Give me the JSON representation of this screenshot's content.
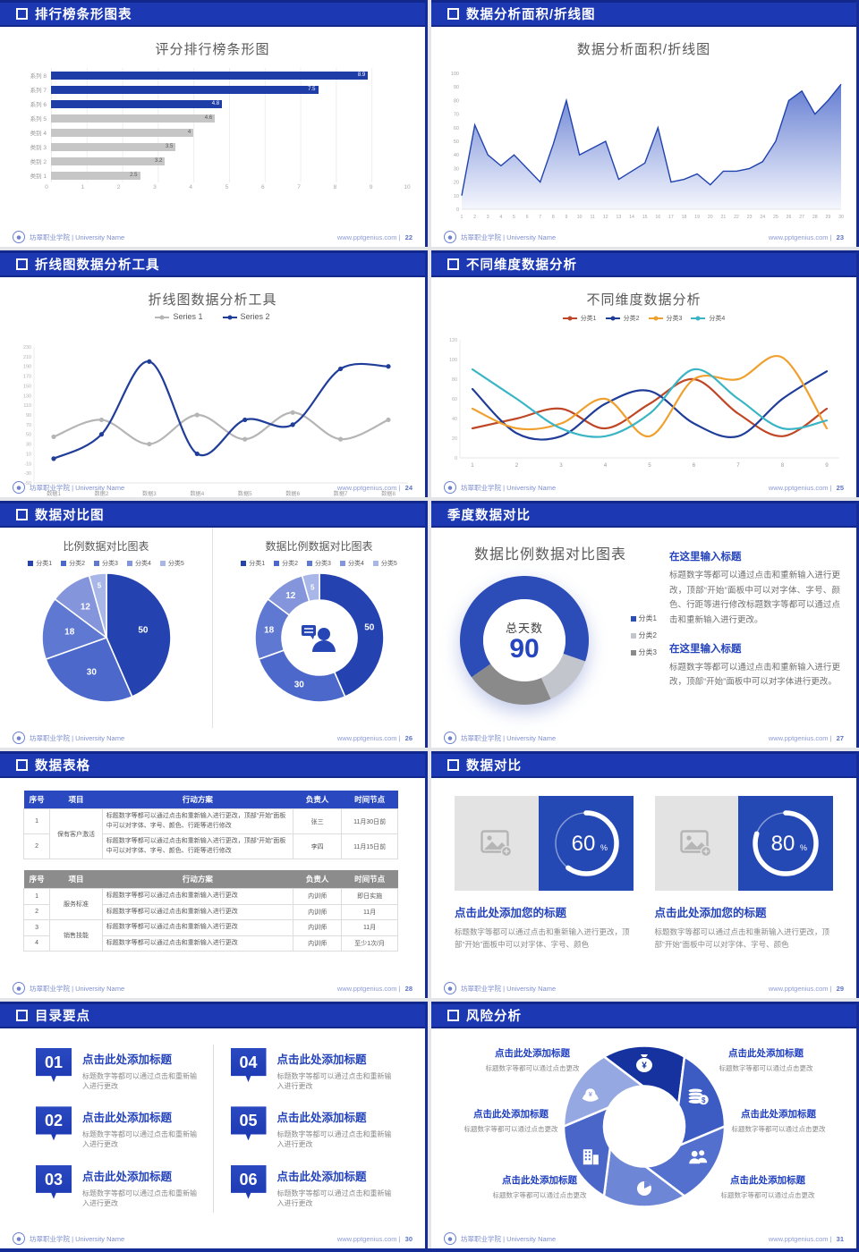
{
  "page_background": "#e3e5e9",
  "accent_color": "#1c38b2",
  "footer": {
    "university": "坊翠职业学院 | University Name",
    "website": "www.pptgenius.com"
  },
  "slides": [
    {
      "header": "排行榜条形图表",
      "page": "22",
      "title": "评分排行榜条形图",
      "chart": 0
    },
    {
      "header": "数据分析面积/折线图",
      "page": "23",
      "title": "数据分析面积/折线图",
      "chart": 1
    },
    {
      "header": "折线图数据分析工具",
      "page": "24",
      "title": "折线图数据分析工具",
      "chart": 2
    },
    {
      "header": "不同维度数据分析",
      "page": "25",
      "title": "不同维度数据分析",
      "chart": 3
    },
    {
      "header": "数据对比图",
      "page": "26",
      "left_title": "比例数据对比图表",
      "right_title": "数据比例数据对比图表",
      "charts": [
        4,
        5
      ]
    },
    {
      "header": "季度数据对比",
      "page": "27",
      "title": "数据比例数据对比图表",
      "chart": 6,
      "center_label": "总天数",
      "center_value": "90",
      "sections": [
        {
          "heading": "在这里输入标题",
          "body": "标题数字等都可以通过点击和重新输入进行更改，顶部“开始”面板中可以对字体、字号、颜色、行距等进行修改标题数字等都可以通过点击和重新输入进行更改。"
        },
        {
          "heading": "在这里输入标题",
          "body": "标题数字等都可以通过点击和重新输入进行更改，顶部“开始”面板中可以对字体进行更改。"
        }
      ]
    },
    {
      "header": "数据表格",
      "page": "28",
      "tables": [
        {
          "style": "blue",
          "columns": [
            "序号",
            "项目",
            "行动方案",
            "负责人",
            "时间节点"
          ],
          "groups": [
            {
              "item": "保有客户激活",
              "rows": [
                {
                  "no": "1",
                  "plan": "标题数字等都可以通过点击和重新输入进行更改，顶部“开始”面板中可以对字体、字号、颜色、行距等进行修改",
                  "owner": "张三",
                  "time": "11月30日前"
                },
                {
                  "no": "2",
                  "plan": "标题数字等都可以通过点击和重新输入进行更改，顶部“开始”面板中可以对字体、字号、颜色、行距等进行修改",
                  "owner": "李四",
                  "time": "11月15日前"
                }
              ]
            }
          ]
        },
        {
          "style": "gray",
          "columns": [
            "序号",
            "项目",
            "行动方案",
            "负责人",
            "时间节点"
          ],
          "groups": [
            {
              "item": "服务标准",
              "rows": [
                {
                  "no": "1",
                  "plan": "标题数字等都可以通过点击和重新输入进行更改",
                  "owner": "内训师",
                  "time": "即日实施"
                },
                {
                  "no": "2",
                  "plan": "标题数字等都可以通过点击和重新输入进行更改",
                  "owner": "内训师",
                  "time": "11月"
                }
              ]
            },
            {
              "item": "销售技能",
              "rows": [
                {
                  "no": "3",
                  "plan": "标题数字等都可以通过点击和重新输入进行更改",
                  "owner": "内训师",
                  "time": "11月"
                },
                {
                  "no": "4",
                  "plan": "标题数字等都可以通过点击和重新输入进行更改",
                  "owner": "内训师",
                  "time": "至少1次/月"
                }
              ]
            }
          ]
        }
      ]
    },
    {
      "header": "数据对比",
      "page": "29",
      "cards": [
        {
          "chart": 7,
          "title": "点击此处添加您的标题",
          "body": "标题数字等都可以通过点击和重新输入进行更改，顶部“开始”面板中可以对字体、字号、颜色"
        },
        {
          "chart": 8,
          "title": "点击此处添加您的标题",
          "body": "标题数字等都可以通过点击和重新输入进行更改，顶部“开始”面板中可以对字体、字号、颜色"
        }
      ]
    },
    {
      "header": "目录要点",
      "page": "30",
      "items": [
        {
          "num": "01",
          "title": "点击此处添加标题",
          "body": "标题数字等都可以通过点击和重新输入进行更改"
        },
        {
          "num": "02",
          "title": "点击此处添加标题",
          "body": "标题数字等都可以通过点击和重新输入进行更改"
        },
        {
          "num": "03",
          "title": "点击此处添加标题",
          "body": "标题数字等都可以通过点击和重新输入进行更改"
        },
        {
          "num": "04",
          "title": "点击此处添加标题",
          "body": "标题数字等都可以通过点击和重新输入进行更改"
        },
        {
          "num": "05",
          "title": "点击此处添加标题",
          "body": "标题数字等都可以通过点击和重新输入进行更改"
        },
        {
          "num": "06",
          "title": "点击此处添加标题",
          "body": "标题数字等都可以通过点击和重新输入进行更改"
        }
      ]
    },
    {
      "header": "风险分析",
      "page": "31",
      "items": [
        {
          "title": "点击此处添加标题",
          "body": "标题数字等都可以通过点击更改",
          "icon": "money-bag-icon"
        },
        {
          "title": "点击此处添加标题",
          "body": "标题数字等都可以通过点击更改",
          "icon": "coins-icon"
        },
        {
          "title": "点击此处添加标题",
          "body": "标题数字等都可以通过点击更改",
          "icon": "people-icon"
        },
        {
          "title": "点击此处添加标题",
          "body": "标题数字等都可以通过点击更改",
          "icon": "pie-icon"
        },
        {
          "title": "点击此处添加标题",
          "body": "标题数字等都可以通过点击更改",
          "icon": "building-icon"
        },
        {
          "title": "点击此处添加标题",
          "body": "标题数字等都可以通过点击更改",
          "icon": "hat-icon"
        }
      ]
    }
  ],
  "chart_data": [
    {
      "type": "bar",
      "orientation": "horizontal",
      "title": "评分排行榜条形图",
      "categories": [
        "系列 8",
        "系列 7",
        "系列 6",
        "系列 5",
        "类别 4",
        "类别 3",
        "类别 2",
        "类别 1"
      ],
      "values": [
        8.9,
        7.5,
        4.8,
        4.6,
        4,
        3.5,
        3.2,
        2.5
      ],
      "bar_colors": [
        "#1f3da6",
        "#1f3da6",
        "#1f3da6",
        "#c6c6c6",
        "#c6c6c6",
        "#c6c6c6",
        "#c6c6c6",
        "#c6c6c6"
      ],
      "xlim": [
        0,
        10
      ],
      "xticks": [
        0,
        1,
        2,
        3,
        4,
        5,
        6,
        7,
        8,
        9,
        10
      ],
      "grid": true
    },
    {
      "type": "area",
      "title": "数据分析面积/折线图",
      "x": [
        1,
        2,
        3,
        4,
        5,
        6,
        7,
        8,
        9,
        10,
        11,
        12,
        13,
        14,
        15,
        16,
        17,
        18,
        19,
        20,
        21,
        22,
        23,
        24,
        25,
        26,
        27,
        28,
        29,
        30
      ],
      "values": [
        10,
        62,
        40,
        32,
        40,
        30,
        20,
        48,
        80,
        40,
        45,
        50,
        22,
        28,
        34,
        60,
        20,
        22,
        26,
        18,
        28,
        28,
        30,
        35,
        50,
        80,
        87,
        70,
        80,
        92
      ],
      "ylim": [
        0,
        100
      ],
      "ytick_step": 10,
      "line_color": "#2143ae",
      "fill_top": "#5b76cf",
      "fill_bottom": "#f4f6fd"
    },
    {
      "type": "line",
      "title": "折线图数据分析工具",
      "categories": [
        "数据1",
        "数据2",
        "数据3",
        "数据4",
        "数据5",
        "数据6",
        "数据7",
        "数据8"
      ],
      "series": [
        {
          "name": "Series 1",
          "color": "#b5b5b5",
          "values": [
            45,
            80,
            30,
            90,
            40,
            95,
            40,
            80
          ]
        },
        {
          "name": "Series 2",
          "color": "#1f3d99",
          "values": [
            0,
            50,
            200,
            10,
            80,
            70,
            185,
            190
          ]
        }
      ],
      "ylim": [
        -50,
        230
      ],
      "ytick_step": 20,
      "legend_position": "top"
    },
    {
      "type": "line",
      "title": "不同维度数据分析",
      "x": [
        1,
        2,
        3,
        4,
        5,
        6,
        7,
        8,
        9
      ],
      "series": [
        {
          "name": "分类1",
          "color": "#bf4726",
          "values": [
            30,
            40,
            50,
            30,
            55,
            80,
            45,
            22,
            50
          ]
        },
        {
          "name": "分类2",
          "color": "#1f3d99",
          "values": [
            70,
            25,
            22,
            55,
            68,
            35,
            22,
            60,
            88
          ]
        },
        {
          "name": "分类3",
          "color": "#efa02f",
          "values": [
            50,
            30,
            35,
            60,
            22,
            80,
            80,
            102,
            30
          ]
        },
        {
          "name": "分类4",
          "color": "#3ab5c6",
          "values": [
            90,
            60,
            30,
            22,
            45,
            90,
            60,
            30,
            38
          ]
        }
      ],
      "ylim": [
        0,
        120
      ],
      "ytick_step": 20,
      "legend_position": "top"
    },
    {
      "type": "pie",
      "title": "比例数据对比图表",
      "labels": [
        "分类1",
        "分类2",
        "分类3",
        "分类4",
        "分类5"
      ],
      "values": [
        50,
        30,
        18,
        12,
        5
      ],
      "colors": [
        "#2443b0",
        "#4c68ca",
        "#5f78d2",
        "#8495dc",
        "#a9b6e8"
      ]
    },
    {
      "type": "pie",
      "subtype": "donut",
      "title": "数据比例数据对比图表",
      "labels": [
        "分类1",
        "分类2",
        "分类3",
        "分类4",
        "分类5"
      ],
      "values": [
        50,
        30,
        18,
        12,
        5
      ],
      "colors": [
        "#2443b0",
        "#4c68ca",
        "#5f78d2",
        "#8495dc",
        "#a9b6e8"
      ],
      "center_icon": "person-chat-icon"
    },
    {
      "type": "pie",
      "subtype": "donut",
      "title": "数据比例数据对比图表",
      "labels": [
        "分类1",
        "分类2",
        "分类3"
      ],
      "values": [
        65,
        13,
        22
      ],
      "colors": [
        "#2c4cb8",
        "#c2c6cc",
        "#8a8a8a"
      ],
      "start_angle": 235,
      "center_label": "总天数",
      "center_value": "90"
    },
    {
      "type": "progress",
      "value": 60,
      "unit": "%"
    },
    {
      "type": "progress",
      "value": 80,
      "unit": "%"
    }
  ]
}
